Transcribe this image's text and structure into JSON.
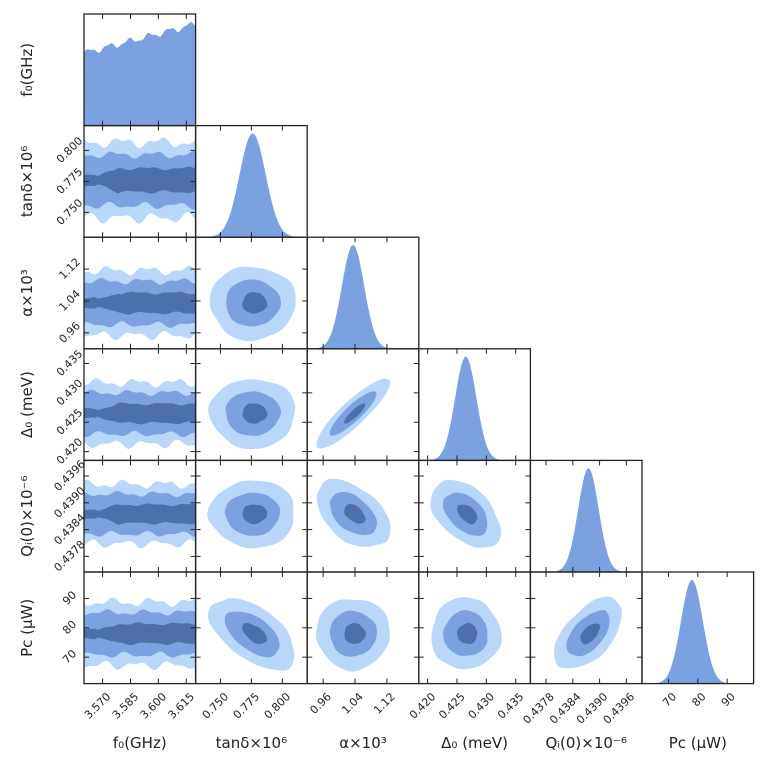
{
  "chart_data": {
    "type": "corner",
    "description_source": "posterior corner plot",
    "parameters": [
      {
        "name": "f0",
        "label": "f₀(GHz)",
        "range": [
          3.56,
          3.62
        ],
        "ticks": [
          3.57,
          3.585,
          3.6,
          3.615
        ],
        "tick_labels": [
          "3.570",
          "3.585",
          "3.600",
          "3.615"
        ],
        "marginal": "flat"
      },
      {
        "name": "tan_delta",
        "label": "tanδ×10⁶",
        "range": [
          0.73,
          0.82
        ],
        "ticks": [
          0.75,
          0.775,
          0.8
        ],
        "tick_labels": [
          "0.750",
          "0.775",
          "0.800"
        ],
        "peak": 0.776,
        "sigma": 0.0105
      },
      {
        "name": "alpha",
        "label": "α×10³",
        "range": [
          0.92,
          1.2
        ],
        "ticks": [
          0.96,
          1.04,
          1.12
        ],
        "tick_labels": [
          "0.96",
          "1.04",
          "1.12"
        ],
        "peak": 1.035,
        "sigma": 0.028
      },
      {
        "name": "Delta0",
        "label": "Δ₀ (meV)",
        "range": [
          0.4185,
          0.4375
        ],
        "ticks": [
          0.42,
          0.425,
          0.43,
          0.435
        ],
        "tick_labels": [
          "0.420",
          "0.425",
          "0.430",
          "0.435"
        ],
        "peak": 0.4265,
        "sigma": 0.0018
      },
      {
        "name": "Qi0",
        "label": "Qᵢ(0)×10⁻⁶",
        "range": [
          0.43745,
          0.43995
        ],
        "ticks": [
          0.4378,
          0.4384,
          0.439,
          0.4396
        ],
        "tick_labels": [
          "0.4378",
          "0.4384",
          "0.4390",
          "0.4396"
        ],
        "peak": 0.43875,
        "sigma": 0.00023
      },
      {
        "name": "Pc",
        "label": "Pᴄ (μW)",
        "range": [
          61,
          99
        ],
        "ticks": [
          70,
          80,
          90
        ],
        "tick_labels": [
          "70",
          "80",
          "90"
        ],
        "peak": 78,
        "sigma": 3.7
      }
    ],
    "correlations": {
      "Delta0|alpha": 0.88,
      "Qi0|alpha": -0.45,
      "Qi0|Delta0": -0.45,
      "Pc|tan_delta": -0.55,
      "Pc|Qi0": 0.55
    },
    "credible_levels": [
      "1σ",
      "2σ",
      "3σ"
    ],
    "colors": {
      "fill_marginal": "#7ba1e0",
      "contour_outer": "#b9d6fb",
      "contour_mid": "#7ba1e0",
      "contour_inner": "#4d6fac",
      "frame": "#222222"
    }
  }
}
